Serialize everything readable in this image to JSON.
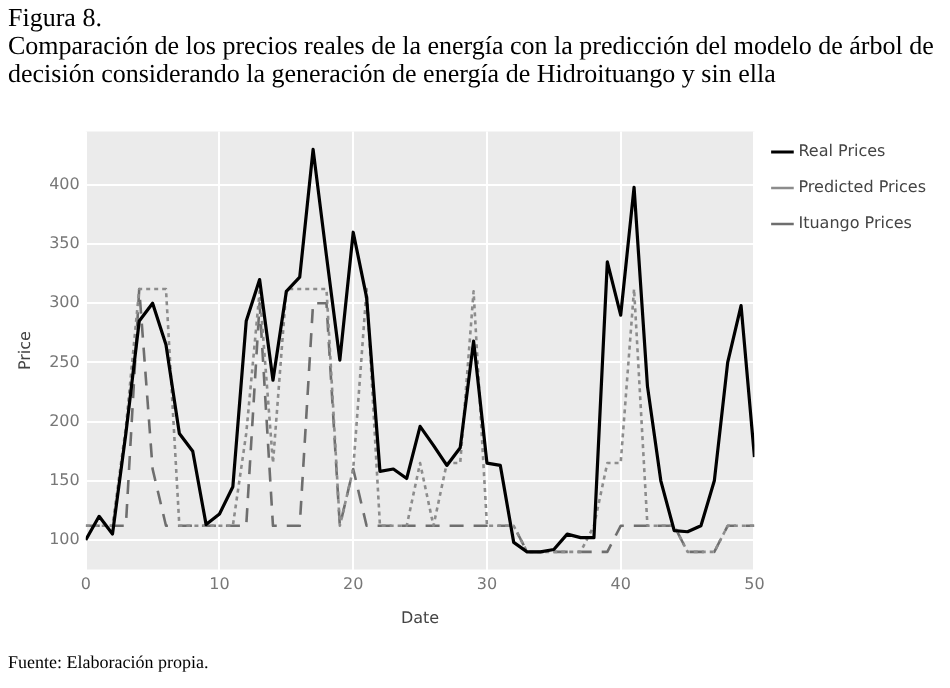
{
  "chart_data": {
    "type": "line",
    "title": "Figura 8.",
    "subtitle": "Comparación de los precios reales de la energía con la predicción del modelo de árbol de decisión considerando la generación de energía de Hidroituango y sin ella",
    "xlabel": "Date",
    "ylabel": "Price",
    "x": [
      0,
      1,
      2,
      3,
      4,
      5,
      6,
      7,
      8,
      9,
      10,
      11,
      12,
      13,
      14,
      15,
      16,
      17,
      18,
      19,
      20,
      21,
      22,
      23,
      24,
      25,
      26,
      27,
      28,
      29,
      30,
      31,
      32,
      33,
      34,
      35,
      36,
      37,
      38,
      39,
      40,
      41,
      42,
      43,
      44,
      45,
      46,
      47,
      48,
      49,
      50
    ],
    "series": [
      {
        "name": "Real Prices",
        "color": "#000000",
        "line_style": "solid",
        "values": [
          100,
          120,
          105,
          190,
          285,
          300,
          265,
          190,
          175,
          113,
          122,
          145,
          285,
          320,
          235,
          310,
          322,
          430,
          340,
          252,
          360,
          305,
          158,
          160,
          152,
          196,
          180,
          163,
          178,
          268,
          165,
          163,
          98,
          90,
          90,
          92,
          105,
          102,
          102,
          335,
          290,
          398,
          230,
          150,
          108,
          107,
          112,
          150,
          250,
          298,
          170
        ]
      },
      {
        "name": "Predicted Prices",
        "color": "#8c8c8c",
        "line_style": "dotted",
        "values": [
          112,
          112,
          112,
          195,
          312,
          312,
          312,
          112,
          112,
          112,
          112,
          112,
          190,
          310,
          165,
          312,
          312,
          312,
          312,
          112,
          160,
          312,
          112,
          112,
          112,
          165,
          112,
          165,
          165,
          310,
          112,
          112,
          112,
          90,
          90,
          90,
          90,
          90,
          112,
          165,
          165,
          312,
          112,
          112,
          112,
          90,
          90,
          90,
          112,
          112,
          112
        ]
      },
      {
        "name": "Ituango Prices",
        "color": "#6e6e6e",
        "line_style": "dashed",
        "values": [
          112,
          112,
          112,
          112,
          312,
          160,
          112,
          112,
          112,
          112,
          112,
          112,
          112,
          300,
          112,
          112,
          112,
          300,
          300,
          112,
          160,
          112,
          112,
          112,
          112,
          112,
          112,
          112,
          112,
          112,
          112,
          112,
          112,
          90,
          90,
          90,
          90,
          90,
          90,
          90,
          112,
          112,
          112,
          112,
          112,
          90,
          90,
          90,
          112,
          112,
          112
        ]
      }
    ],
    "xlim": [
      0,
      50
    ],
    "xticks": [
      0,
      10,
      20,
      30,
      40,
      50
    ],
    "ylim": [
      75,
      445
    ],
    "yticks": [
      100,
      150,
      200,
      250,
      300,
      350,
      400
    ],
    "grid": true,
    "legend": "right",
    "marker": "none",
    "annotations": [
      "Fuente: Elaboración propia."
    ]
  }
}
